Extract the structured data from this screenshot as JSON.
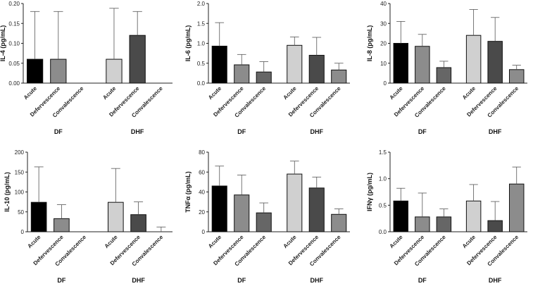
{
  "chart_data": [
    {
      "type": "bar",
      "ylabel": "IL-4 (pg/mL)",
      "ylim": [
        0,
        0.2
      ],
      "yticks": [
        "0.00",
        "0.05",
        "0.10",
        "0.15",
        "0.20"
      ],
      "tickValues": [
        0,
        0.05,
        0.1,
        0.15,
        0.2
      ],
      "categories": [
        "Acute",
        "Defervescence",
        "Convalescence",
        "Acute",
        "Defervescence",
        "Convalescence"
      ],
      "groups": [
        "DF",
        "DHF"
      ],
      "values": [
        0.06,
        0.06,
        0,
        0.06,
        0.12,
        0
      ],
      "errors": [
        0.12,
        0.12,
        0,
        0.128,
        0.06,
        0
      ],
      "colors": [
        "#000000",
        "#8c8c8c",
        "#666666",
        "#d0d0d0",
        "#4a4a4a",
        "#8c8c8c"
      ]
    },
    {
      "type": "bar",
      "ylabel": "IL-6 (pg/mL)",
      "ylim": [
        0,
        2.0
      ],
      "yticks": [
        "0.0",
        "0.5",
        "1.0",
        "1.5",
        "2.0"
      ],
      "tickValues": [
        0,
        0.5,
        1.0,
        1.5,
        2.0
      ],
      "categories": [
        "Acute",
        "Defervescence",
        "Convalescence",
        "Acute",
        "Defervescence",
        "Convalescence"
      ],
      "groups": [
        "DF",
        "DHF"
      ],
      "values": [
        0.93,
        0.46,
        0.28,
        0.95,
        0.7,
        0.33
      ],
      "errors": [
        0.59,
        0.26,
        0.26,
        0.21,
        0.45,
        0.17
      ],
      "colors": [
        "#000000",
        "#8c8c8c",
        "#666666",
        "#d0d0d0",
        "#4a4a4a",
        "#8c8c8c"
      ]
    },
    {
      "type": "bar",
      "ylabel": "IL-8 (pg/mL)",
      "ylim": [
        0,
        40
      ],
      "yticks": [
        "0",
        "10",
        "20",
        "30",
        "40"
      ],
      "tickValues": [
        0,
        10,
        20,
        30,
        40
      ],
      "categories": [
        "Acute",
        "Defervescence",
        "Convalescence",
        "Acute",
        "Defervescence",
        "Convalescence"
      ],
      "groups": [
        "DF",
        "DHF"
      ],
      "values": [
        20,
        18.5,
        7.8,
        24,
        21,
        6.8
      ],
      "errors": [
        11,
        6,
        3.2,
        13,
        12,
        2.2
      ],
      "colors": [
        "#000000",
        "#8c8c8c",
        "#666666",
        "#d0d0d0",
        "#4a4a4a",
        "#8c8c8c"
      ]
    },
    {
      "type": "bar",
      "ylabel": "IL-10  (pg/mL)",
      "ylim": [
        0,
        200
      ],
      "yticks": [
        "0",
        "50",
        "100",
        "150",
        "200"
      ],
      "tickValues": [
        0,
        50,
        100,
        150,
        200
      ],
      "categories": [
        "Acute",
        "Defervescence",
        "Convalescence",
        "Acute",
        "Defervescence",
        "Convalescence"
      ],
      "groups": [
        "DF",
        "DHF"
      ],
      "values": [
        74,
        33,
        0,
        74,
        43,
        0
      ],
      "errors": [
        89,
        35,
        0,
        85,
        32,
        12
      ],
      "colors": [
        "#000000",
        "#8c8c8c",
        "#666666",
        "#d0d0d0",
        "#4a4a4a",
        "#8c8c8c"
      ]
    },
    {
      "type": "bar",
      "ylabel": "TNFα  (pg/mL)",
      "ylim": [
        0,
        80
      ],
      "yticks": [
        "0",
        "20",
        "40",
        "60",
        "80"
      ],
      "tickValues": [
        0,
        20,
        40,
        60,
        80
      ],
      "categories": [
        "Acute",
        "Defervescence",
        "Convalescence",
        "Acute",
        "Defervescence",
        "Convalescence"
      ],
      "groups": [
        "DF",
        "DHF"
      ],
      "values": [
        46,
        37,
        19,
        58,
        44,
        17.5
      ],
      "errors": [
        20,
        20,
        10,
        13,
        11,
        5.5
      ],
      "colors": [
        "#000000",
        "#8c8c8c",
        "#666666",
        "#d0d0d0",
        "#4a4a4a",
        "#8c8c8c"
      ]
    },
    {
      "type": "bar",
      "ylabel": "IFNγ  (pg/mL)",
      "ylim": [
        0,
        1.5
      ],
      "yticks": [
        "0.0",
        "0.5",
        "1.0",
        "1.5"
      ],
      "tickValues": [
        0,
        0.5,
        1.0,
        1.5
      ],
      "categories": [
        "Acute",
        "Defervescence",
        "Convalescence",
        "Acute",
        "Defervescence",
        "Convalescence"
      ],
      "groups": [
        "DF",
        "DHF"
      ],
      "values": [
        0.58,
        0.28,
        0.28,
        0.58,
        0.21,
        0.9
      ],
      "errors": [
        0.24,
        0.45,
        0.15,
        0.31,
        0.36,
        0.32
      ],
      "colors": [
        "#000000",
        "#8c8c8c",
        "#666666",
        "#d0d0d0",
        "#4a4a4a",
        "#8c8c8c"
      ]
    }
  ]
}
